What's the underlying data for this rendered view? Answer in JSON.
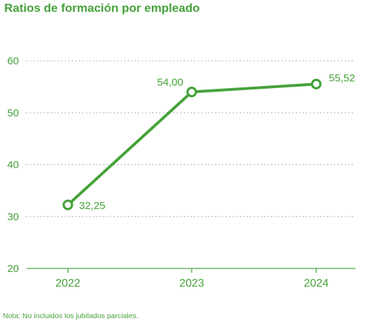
{
  "title": "Ratios de formación por empleado",
  "note": "Nota: No incluidos los jubilados parciales.",
  "colors": {
    "accent": "#46a23a",
    "gridline": "#6f6f6f",
    "background": "#ffffff"
  },
  "chart_data": {
    "type": "line",
    "title": "Ratios de formación por empleado",
    "xlabel": "",
    "ylabel": "",
    "categories": [
      "2022",
      "2023",
      "2024"
    ],
    "y_ticks": [
      "20",
      "30",
      "40",
      "50",
      "60"
    ],
    "ylim": [
      20,
      60
    ],
    "grid": true,
    "legend": "none",
    "series": [
      {
        "values": [
          32.25,
          54.0,
          55.52
        ],
        "labels": [
          "32,25",
          "54,00",
          "55,52"
        ]
      }
    ]
  }
}
